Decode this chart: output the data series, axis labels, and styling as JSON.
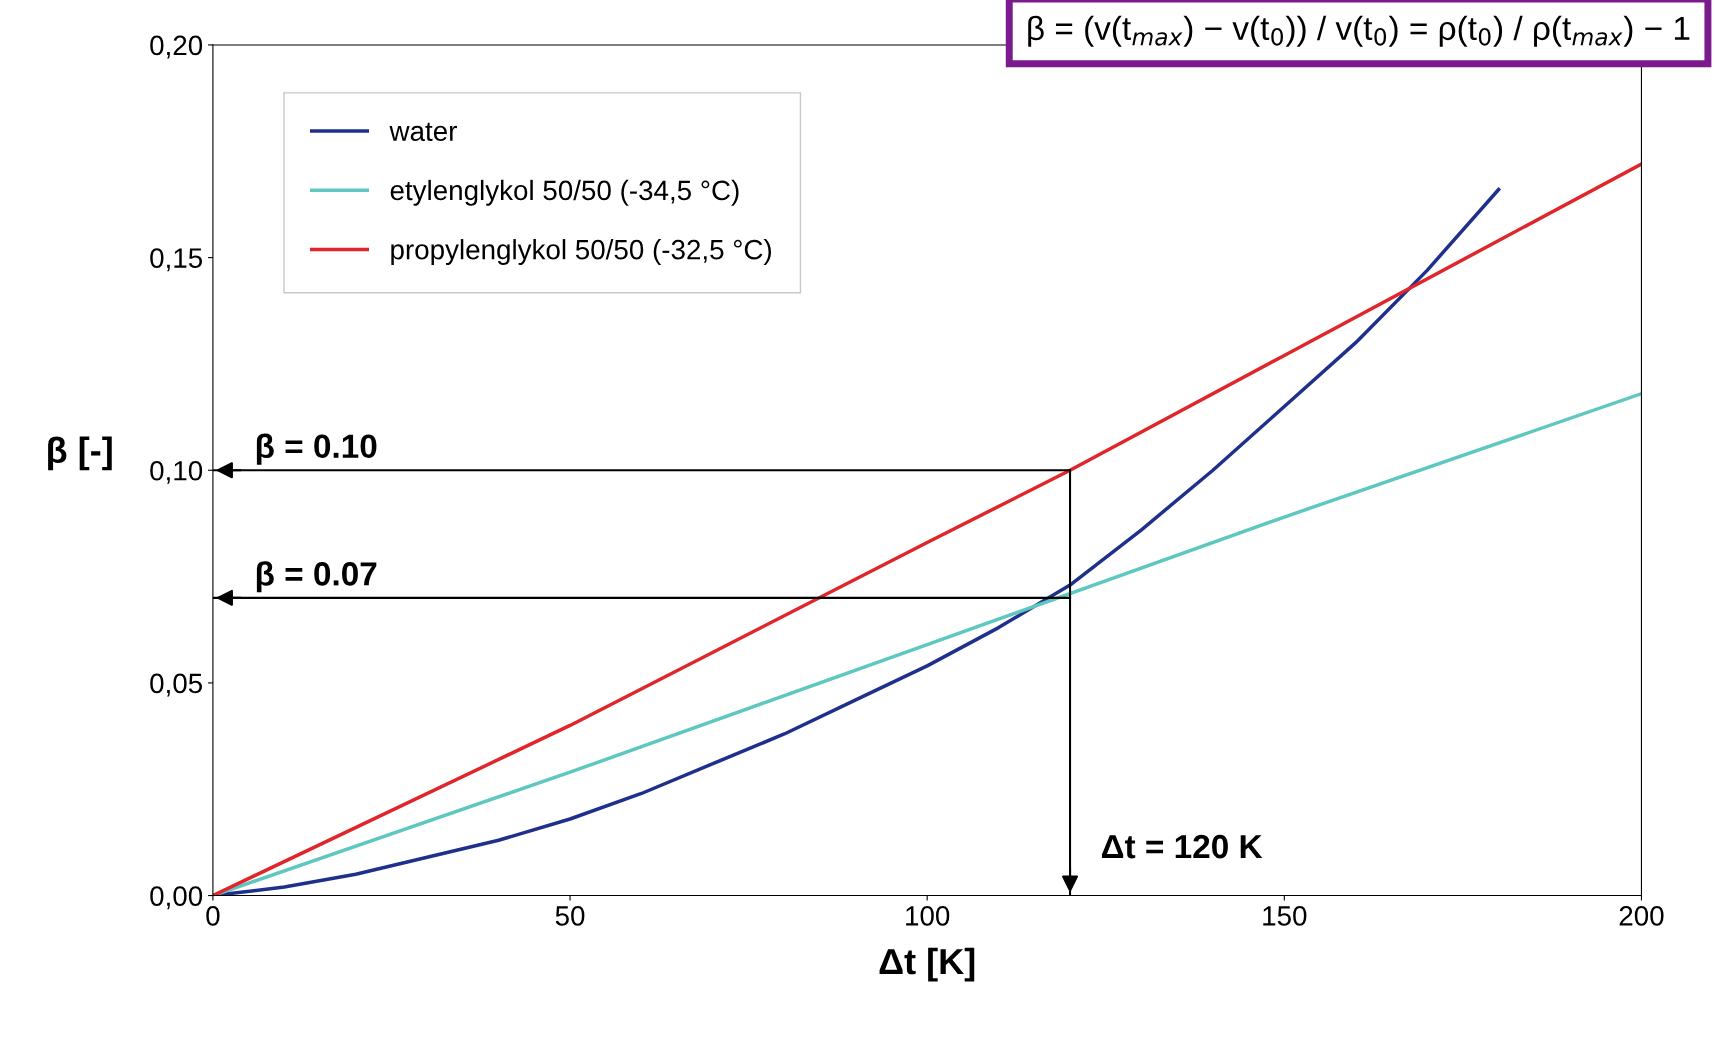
{
  "chart_data": {
    "type": "line",
    "xlabel": "Δt [K]",
    "ylabel": "β [-]",
    "xlim": [
      0,
      200
    ],
    "ylim": [
      0,
      0.2
    ],
    "xticks": [
      0,
      50,
      100,
      150,
      200
    ],
    "yticks": [
      {
        "value": 0,
        "label": "0,00"
      },
      {
        "value": 0.05,
        "label": "0,05"
      },
      {
        "value": 0.1,
        "label": "0,10"
      },
      {
        "value": 0.15,
        "label": "0,15"
      },
      {
        "value": 0.2,
        "label": "0,20"
      }
    ],
    "series": [
      {
        "name": "water",
        "color": "#1f2f8c",
        "x": [
          0,
          10,
          20,
          30,
          40,
          50,
          60,
          70,
          80,
          90,
          100,
          110,
          120,
          130,
          140,
          150,
          160,
          170,
          180
        ],
        "values": [
          0,
          0.002,
          0.005,
          0.009,
          0.013,
          0.018,
          0.024,
          0.031,
          0.038,
          0.046,
          0.054,
          0.063,
          0.073,
          0.086,
          0.1,
          0.115,
          0.13,
          0.147,
          0.166
        ]
      },
      {
        "name": "etylenglykol 50/50 (-34,5 °C)",
        "color": "#5ec8c0",
        "x": [
          0,
          50,
          100,
          150,
          200
        ],
        "values": [
          0,
          0.029,
          0.059,
          0.089,
          0.118
        ]
      },
      {
        "name": "propylenglykol 50/50 (-32,5 °C)",
        "color": "#e0262a",
        "x": [
          0,
          50,
          100,
          120,
          150,
          200
        ],
        "values": [
          0,
          0.04,
          0.083,
          0.1,
          0.127,
          0.172
        ]
      }
    ],
    "ref_lines": [
      {
        "axis": "y",
        "value": 0.1,
        "label": "β = 0.10"
      },
      {
        "axis": "y",
        "value": 0.07,
        "label": "β = 0.07"
      },
      {
        "axis": "x",
        "value": 120,
        "label": "Δt = 120 K"
      }
    ],
    "annotations": [
      "β = (v(t$_{max}$) − v(t$_{0}$)) / v(t$_{0}$) = ρ(t$_{0}$) / ρ(t$_{max}$) − 1"
    ],
    "legend": "top left",
    "grid": false,
    "line_style": "solid",
    "marker": "none"
  }
}
